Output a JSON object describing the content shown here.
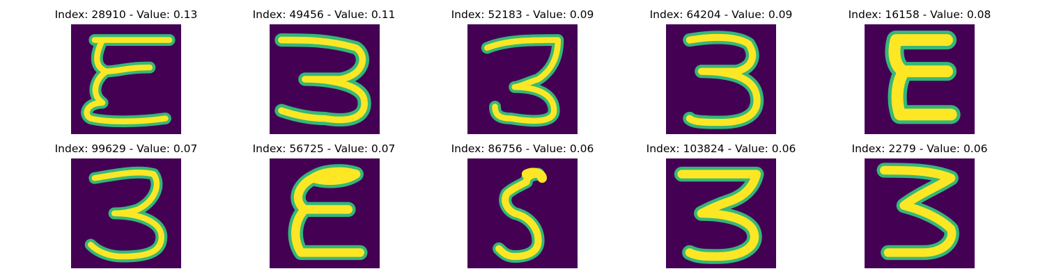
{
  "panels": [
    {
      "title": "Index: 28910 - Value: 0.13",
      "depicts": "handwritten-epsilon-like-3"
    },
    {
      "title": "Index: 49456 - Value: 0.11",
      "depicts": "handwritten-3"
    },
    {
      "title": "Index: 52183 - Value: 0.09",
      "depicts": "handwritten-3"
    },
    {
      "title": "Index: 64204 - Value: 0.09",
      "depicts": "handwritten-3"
    },
    {
      "title": "Index: 16158 - Value: 0.08",
      "depicts": "handwritten-E"
    },
    {
      "title": "Index: 99629 - Value: 0.07",
      "depicts": "handwritten-3"
    },
    {
      "title": "Index: 56725 - Value: 0.07",
      "depicts": "handwritten-E"
    },
    {
      "title": "Index: 86756 - Value: 0.06",
      "depicts": "handwritten-5"
    },
    {
      "title": "Index: 103824 - Value: 0.06",
      "depicts": "handwritten-3"
    },
    {
      "title": "Index: 2279 - Value: 0.06",
      "depicts": "handwritten-3"
    }
  ],
  "colors": {
    "background": "#440154",
    "stroke_core": "#fde725",
    "stroke_edge": "#35b779",
    "title_text": "#000000"
  }
}
